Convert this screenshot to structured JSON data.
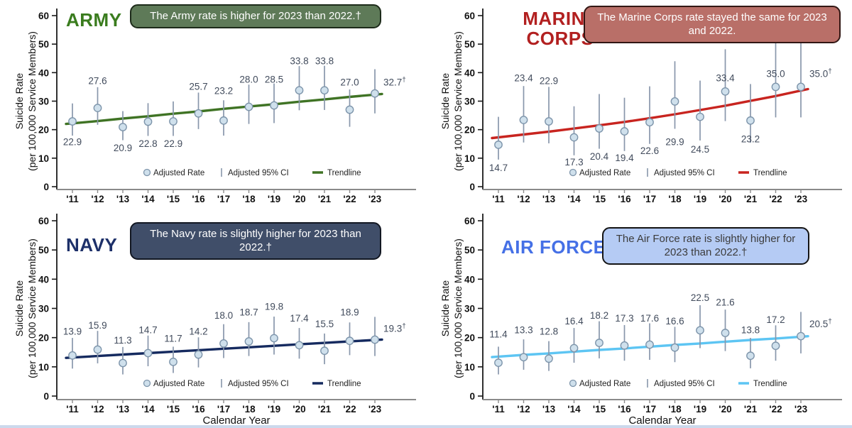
{
  "figure": {
    "y_axis_title_line1": "Suicide Rate",
    "y_axis_title_line2": "(per 100,000 Service Members)",
    "x_axis_title": "Calendar Year",
    "legend": {
      "rate_label": "Adjusted Rate",
      "ci_label": "Adjusted 95% CI",
      "trend_label": "Trendline"
    },
    "colors": {
      "marker_fill": "#cfe0ec",
      "marker_stroke": "#7e95ab",
      "ci_line": "#8897ab",
      "data_label": "#414b5c",
      "axis": "#1a1a1a",
      "x_axis_line": "#8a8a8a",
      "tick_text": "#111111"
    }
  },
  "chart_data": [
    {
      "type": "scatter",
      "branch": "army",
      "title": "ARMY",
      "title_color": "#3a7c1e",
      "callout": {
        "text": "The Army rate is higher for 2023 than 2022.†",
        "bg": "#5e7a58",
        "fg": "#ffffff",
        "border": "#1d2b1a"
      },
      "x": [
        "'11",
        "'12",
        "'13",
        "'14",
        "'15",
        "'16",
        "'17",
        "'18",
        "'19",
        "'20",
        "'21",
        "'22",
        "'23"
      ],
      "values": [
        22.9,
        27.6,
        20.9,
        22.8,
        22.9,
        25.7,
        23.2,
        28.0,
        28.5,
        33.8,
        33.8,
        27.0,
        32.7
      ],
      "ci_low": [
        17.9,
        21.7,
        16.3,
        17.8,
        17.8,
        20.2,
        17.9,
        22.0,
        22.3,
        26.8,
        26.9,
        21.0,
        25.7
      ],
      "ci_high": [
        29.2,
        34.9,
        26.5,
        29.3,
        29.9,
        33.0,
        30.3,
        35.8,
        36.2,
        42.3,
        42.4,
        34.1,
        41.2
      ],
      "point_labels": [
        "22.9",
        "27.6",
        "20.9",
        "22.8",
        "22.9",
        "25.7",
        "23.2",
        "28.0",
        "28.5",
        "33.8",
        "33.8",
        "27.0",
        "32.7†"
      ],
      "label_y": [
        15.5,
        37,
        13.5,
        15,
        15,
        35,
        33.5,
        37.5,
        37.5,
        44,
        44,
        36.5,
        36.5
      ],
      "label_pos": [
        "c",
        "c",
        "c",
        "c",
        "c",
        "c",
        "c",
        "c",
        "c",
        "c",
        "c",
        "c",
        "r"
      ],
      "trend": {
        "color": "#3f7324",
        "values": [
          22.2,
          23.0,
          23.9,
          24.7,
          25.6,
          26.4,
          27.3,
          28.1,
          28.9,
          29.8,
          30.6,
          31.5,
          32.3
        ]
      },
      "ylim": [
        0,
        60
      ],
      "y_ticks": [
        0,
        10,
        20,
        30,
        40,
        50,
        60
      ],
      "show_x_axis_title": false,
      "grid": false,
      "legend_position": "inside-bottom-center"
    },
    {
      "type": "scatter",
      "branch": "marine",
      "title": "MARINE CORPS",
      "title_color": "#b22020",
      "callout": {
        "text": "The Marine Corps rate stayed the same for 2023  and 2022.",
        "bg": "#b96f68",
        "fg": "#ffffff",
        "border": "#321714"
      },
      "x": [
        "'11",
        "'12",
        "'13",
        "'14",
        "'15",
        "'16",
        "'17",
        "'18",
        "'19",
        "'20",
        "'21",
        "'22",
        "'23"
      ],
      "values": [
        14.7,
        23.4,
        22.9,
        17.3,
        20.4,
        19.4,
        22.6,
        29.9,
        24.5,
        33.4,
        23.2,
        35.0,
        35.0
      ],
      "ci_low": [
        9.5,
        15.5,
        15.2,
        11.0,
        13.3,
        12.5,
        15.0,
        20.3,
        16.2,
        23.0,
        15.4,
        24.3,
        24.3
      ],
      "ci_high": [
        24.5,
        35.3,
        35.0,
        28.2,
        32.5,
        31.2,
        35.2,
        44.0,
        37.2,
        48.2,
        36.0,
        52.0,
        52.0
      ],
      "point_labels": [
        "14.7",
        "23.4",
        "22.9",
        "17.3",
        "20.4",
        "19.4",
        "22.6",
        "29.9",
        "24.5",
        "33.4",
        "23.2",
        "35.0",
        "35.0†"
      ],
      "label_y": [
        6.5,
        38,
        37,
        8.5,
        10.5,
        10,
        12.5,
        15.5,
        13,
        38,
        16.5,
        39.5,
        39.5
      ],
      "label_pos": [
        "c",
        "c",
        "c",
        "c",
        "c",
        "c",
        "c",
        "c",
        "c",
        "c",
        "c",
        "c",
        "r"
      ],
      "trend": {
        "color": "#c8241f",
        "values": [
          17.3,
          18.3,
          19.3,
          20.4,
          21.5,
          22.7,
          24.0,
          25.4,
          26.9,
          28.4,
          30.1,
          31.8,
          33.7
        ]
      },
      "ylim": [
        0,
        60
      ],
      "y_ticks": [
        0,
        10,
        20,
        30,
        40,
        50,
        60
      ],
      "show_x_axis_title": false,
      "grid": false,
      "legend_position": "inside-bottom-center"
    },
    {
      "type": "scatter",
      "branch": "navy",
      "title": "NAVY",
      "title_color": "#1d3069",
      "callout": {
        "text": "The Navy rate is slightly higher for 2023 than 2022.†",
        "bg": "#404e69",
        "fg": "#ffffff",
        "border": "#121722"
      },
      "x": [
        "'11",
        "'12",
        "'13",
        "'14",
        "'15",
        "'16",
        "'17",
        "'18",
        "'19",
        "'20",
        "'21",
        "'22",
        "'23"
      ],
      "values": [
        13.9,
        15.9,
        11.3,
        14.7,
        11.7,
        14.2,
        18.0,
        18.7,
        19.8,
        17.4,
        15.5,
        18.9,
        19.3
      ],
      "ci_low": [
        9.4,
        11.2,
        7.4,
        10.2,
        7.9,
        9.8,
        13.0,
        13.7,
        14.2,
        12.8,
        10.9,
        14.0,
        13.7
      ],
      "ci_high": [
        19.9,
        22.3,
        16.8,
        20.7,
        16.9,
        20.1,
        24.6,
        25.3,
        27.2,
        23.3,
        21.4,
        25.2,
        27.1
      ],
      "point_labels": [
        "13.9",
        "15.9",
        "11.3",
        "14.7",
        "11.7",
        "14.2",
        "18.0",
        "18.7",
        "19.8",
        "17.4",
        "15.5",
        "18.9",
        "19.3†"
      ],
      "label_y": [
        22,
        24,
        19,
        22.5,
        19.5,
        22,
        27.5,
        28.5,
        30.5,
        26.5,
        24.5,
        28.5,
        23
      ],
      "label_pos": [
        "c",
        "c",
        "c",
        "c",
        "c",
        "c",
        "c",
        "c",
        "c",
        "c",
        "c",
        "c",
        "r"
      ],
      "trend": {
        "color": "#152a5f",
        "values": [
          13.2,
          13.7,
          14.2,
          14.7,
          15.2,
          15.7,
          16.2,
          16.7,
          17.2,
          17.7,
          18.2,
          18.7,
          19.2
        ]
      },
      "ylim": [
        0,
        60
      ],
      "y_ticks": [
        0,
        10,
        20,
        30,
        40,
        50,
        60
      ],
      "show_x_axis_title": true,
      "grid": false,
      "legend_position": "inside-bottom-center"
    },
    {
      "type": "scatter",
      "branch": "af",
      "title": "AIR FORCE",
      "title_color": "#4570e6",
      "callout": {
        "text": "The Air Force rate is slightly higher for 2023 than 2022.†",
        "bg": "#b5cbf4",
        "fg": "#3c3c3c",
        "border": "#141414"
      },
      "x": [
        "'11",
        "'12",
        "'13",
        "'14",
        "'15",
        "'16",
        "'17",
        "'18",
        "'19",
        "'20",
        "'21",
        "'22",
        "'23"
      ],
      "values": [
        11.4,
        13.3,
        12.8,
        16.4,
        18.2,
        17.3,
        17.6,
        16.6,
        22.5,
        21.6,
        13.8,
        17.2,
        20.5
      ],
      "ci_low": [
        7.4,
        9.0,
        8.6,
        11.4,
        12.9,
        12.1,
        12.4,
        11.6,
        16.4,
        15.4,
        9.5,
        12.1,
        14.6
      ],
      "ci_high": [
        16.9,
        19.4,
        18.8,
        23.3,
        25.6,
        24.3,
        24.9,
        23.7,
        31.1,
        29.6,
        19.9,
        24.2,
        28.8
      ],
      "point_labels": [
        "11.4",
        "13.3",
        "12.8",
        "16.4",
        "18.2",
        "17.3",
        "17.6",
        "16.6",
        "22.5",
        "21.6",
        "13.8",
        "17.2",
        "20.5†"
      ],
      "label_y": [
        21,
        22.5,
        22,
        25.5,
        27.5,
        26.5,
        26.5,
        25.5,
        33.5,
        32,
        22.5,
        26,
        24.5
      ],
      "label_pos": [
        "c",
        "c",
        "c",
        "c",
        "c",
        "c",
        "c",
        "c",
        "c",
        "c",
        "c",
        "c",
        "r"
      ],
      "trend": {
        "color": "#5dc5f3",
        "values": [
          13.5,
          14.1,
          14.6,
          15.2,
          15.8,
          16.3,
          16.9,
          17.5,
          18.0,
          18.6,
          19.2,
          19.7,
          20.3
        ]
      },
      "ylim": [
        0,
        60
      ],
      "y_ticks": [
        0,
        10,
        20,
        30,
        40,
        50,
        60
      ],
      "show_x_axis_title": true,
      "grid": false,
      "legend_position": "inside-bottom-center"
    }
  ]
}
